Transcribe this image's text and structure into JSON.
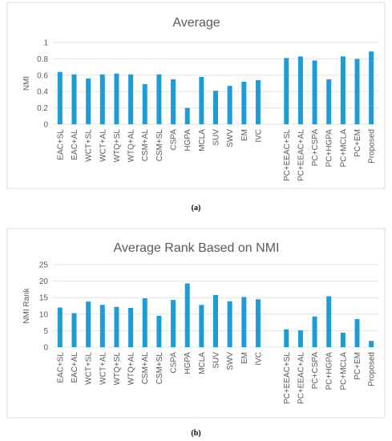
{
  "chart_data": [
    {
      "type": "bar",
      "title": "Average",
      "xlabel": "",
      "ylabel": "NMI",
      "ylim": [
        0,
        1
      ],
      "yticks": [
        "0",
        "0.2",
        "0.4",
        "0.6",
        "0.8",
        "1"
      ],
      "grid": true,
      "legend": "none",
      "color": "#1f9bd7",
      "categories": [
        "EAC+SL",
        "EAC+AL",
        "WCT+SL",
        "WCT+AL",
        "WTQ+SL",
        "WTQ+AL",
        "CSM+AL",
        "CSM+SL",
        "CSPA",
        "HGPA",
        "MCLA",
        "SUV",
        "SWV",
        "EM",
        "IVC",
        "",
        "PC+EEAC+SL",
        "PC+EEAC+AL",
        "PC+CSPA",
        "PC+HGPA",
        "PC+MCLA",
        "PC+EM",
        "Proposed"
      ],
      "values": [
        0.64,
        0.61,
        0.56,
        0.61,
        0.62,
        0.61,
        0.49,
        0.61,
        0.55,
        0.2,
        0.58,
        0.41,
        0.47,
        0.52,
        0.54,
        null,
        0.81,
        0.83,
        0.78,
        0.55,
        0.83,
        0.8,
        0.89
      ],
      "caption": "(a)"
    },
    {
      "type": "bar",
      "title": "Average Rank Based on NMI",
      "xlabel": "",
      "ylabel": "NMI Rank",
      "ylim": [
        0,
        25
      ],
      "yticks": [
        "0",
        "5",
        "10",
        "15",
        "20",
        "25"
      ],
      "grid": true,
      "legend": "none",
      "color": "#1f9bd7",
      "categories": [
        "EAC+SL",
        "EAC+AL",
        "WCT+SL",
        "WCT+AL",
        "WTQ+SL",
        "WTQ+AL",
        "CSM+AL",
        "CSM+SL",
        "CSPA",
        "HGPA",
        "MCLA",
        "SUV",
        "SWV",
        "EM",
        "IVC",
        "",
        "PC+EEAC+SL",
        "PC+EEAC+AL",
        "PC+CSPA",
        "PC+HGPA",
        "PC+MCLA",
        "PC+EM",
        "Proposed"
      ],
      "values": [
        12,
        10.3,
        13.8,
        12.8,
        12.2,
        11.9,
        14.8,
        9.5,
        14.3,
        19.3,
        12.8,
        15.8,
        13.9,
        15.2,
        14.5,
        null,
        5.4,
        5.1,
        9.3,
        15.4,
        4.4,
        8.5,
        1.9
      ],
      "caption": "(b)"
    }
  ]
}
